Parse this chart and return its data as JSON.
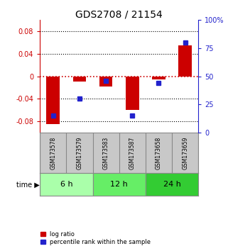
{
  "title": "GDS2708 / 21154",
  "samples": [
    "GSM173578",
    "GSM173579",
    "GSM173583",
    "GSM173587",
    "GSM173658",
    "GSM173659"
  ],
  "log_ratio": [
    -0.085,
    -0.01,
    -0.018,
    -0.06,
    -0.006,
    0.055
  ],
  "percentile": [
    15,
    30,
    46,
    15,
    44,
    80
  ],
  "time_groups": [
    {
      "label": "6 h",
      "start": 0,
      "end": 2,
      "color": "#aaffaa"
    },
    {
      "label": "12 h",
      "start": 2,
      "end": 4,
      "color": "#66ee66"
    },
    {
      "label": "24 h",
      "start": 4,
      "end": 6,
      "color": "#33cc33"
    }
  ],
  "ylim_left": [
    -0.1,
    0.1
  ],
  "ylim_right": [
    0,
    100
  ],
  "yticks_left": [
    -0.08,
    -0.04,
    0.0,
    0.04,
    0.08
  ],
  "yticks_right": [
    0,
    25,
    50,
    75,
    100
  ],
  "bar_color": "#cc0000",
  "dot_color": "#2222cc",
  "background_color": "#ffffff",
  "left_tick_color": "#cc0000",
  "right_tick_color": "#2222cc",
  "zero_line_color": "#cc0000",
  "dotted_line_color": "#000000",
  "bar_width": 0.5,
  "dot_size": 4,
  "label_band_color": "#c8c8c8",
  "separator_color": "#888888"
}
